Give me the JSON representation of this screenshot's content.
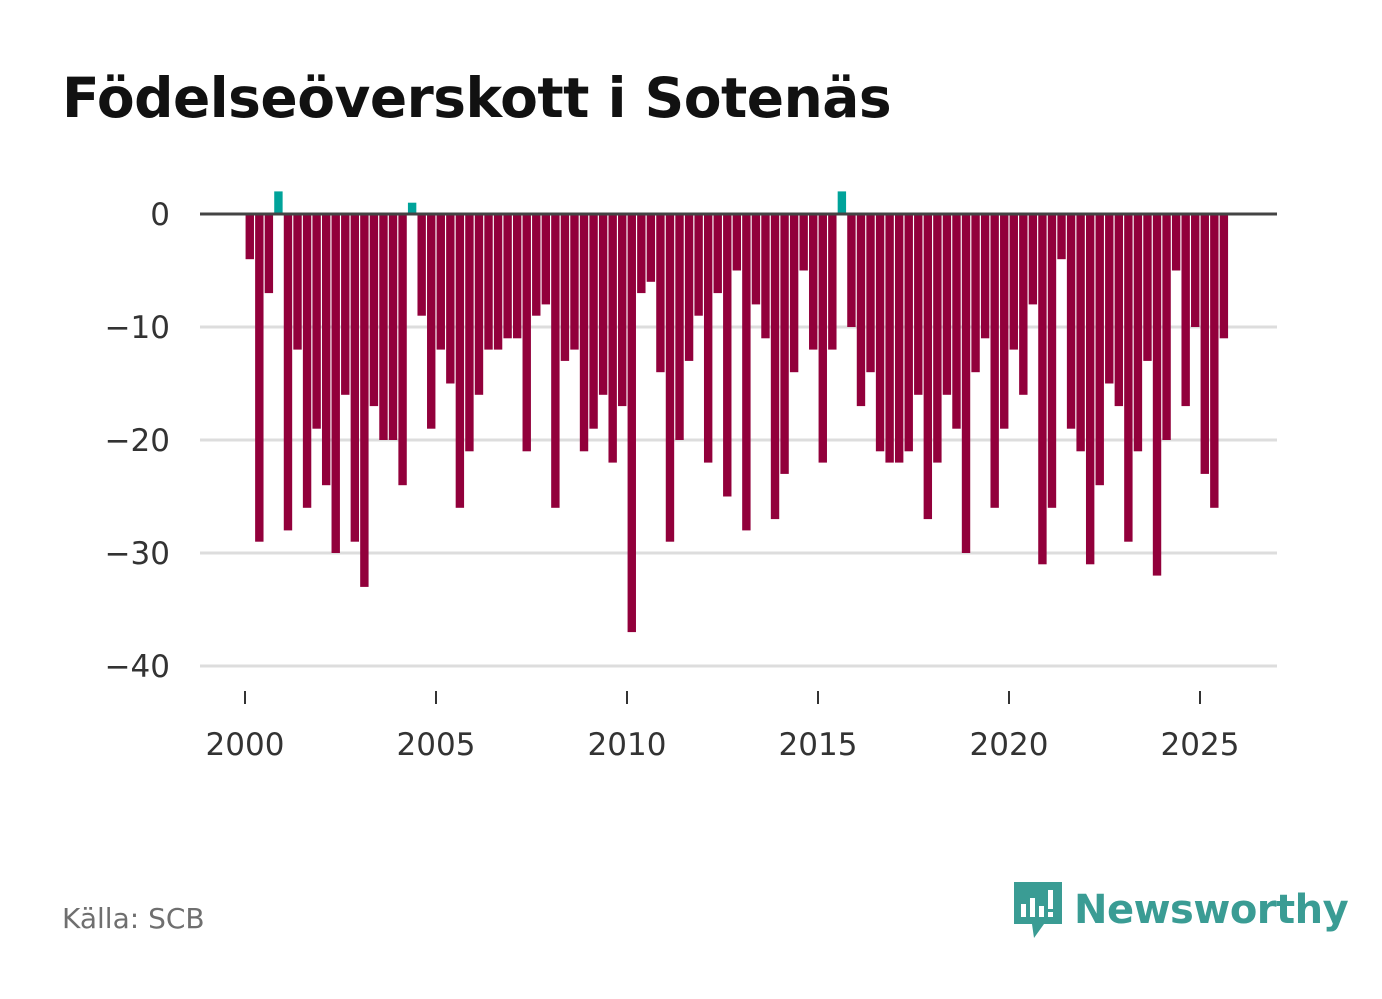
{
  "chart_data": {
    "type": "bar",
    "title": "Födelseöverskott i Sotenäs",
    "xlabel": "",
    "ylabel": "",
    "ylim": [
      -40,
      0
    ],
    "xlim": [
      1999.3,
      2027.2
    ],
    "yticks": [
      0,
      -10,
      -20,
      -30,
      -40
    ],
    "ytick_labels": [
      "0",
      "−10",
      "−20",
      "−30",
      "−40"
    ],
    "xticks": [
      2000,
      2005,
      2010,
      2015,
      2020,
      2025
    ],
    "xtick_labels": [
      "2000",
      "2005",
      "2010",
      "2015",
      "2020",
      "2025"
    ],
    "grid": true,
    "frequency": "quarterly",
    "start": "2000 Q1",
    "colors": {
      "positive": "#00a39a",
      "negative": "#92003b",
      "zero_line": "#444444",
      "grid": "#dddddd"
    },
    "values": [
      -4,
      -29,
      -7,
      2,
      -28,
      -12,
      -26,
      -19,
      -24,
      -30,
      -16,
      -29,
      -33,
      -17,
      -20,
      -20,
      -24,
      1,
      -9,
      -19,
      -12,
      -15,
      -26,
      -21,
      -16,
      -12,
      -12,
      -11,
      -11,
      -21,
      -9,
      -8,
      -26,
      -13,
      -12,
      -21,
      -19,
      -16,
      -22,
      -17,
      -37,
      -7,
      -6,
      -14,
      -29,
      -20,
      -13,
      -9,
      -22,
      -7,
      -25,
      -5,
      -28,
      -8,
      -11,
      -27,
      -23,
      -14,
      -5,
      -12,
      -22,
      -12,
      2,
      -10,
      -17,
      -14,
      -21,
      -22,
      -22,
      -21,
      -16,
      -27,
      -22,
      -16,
      -19,
      -30,
      -14,
      -11,
      -26,
      -19,
      -12,
      -16,
      -8,
      -31,
      -26,
      -4,
      -19,
      -21,
      -31,
      -24,
      -15,
      -17,
      -29,
      -21,
      -13,
      -32,
      -20,
      -5,
      -17,
      -10,
      -23,
      -26,
      -11
    ]
  },
  "footer": {
    "source": "Källa: SCB",
    "brand": "Newsworthy"
  }
}
